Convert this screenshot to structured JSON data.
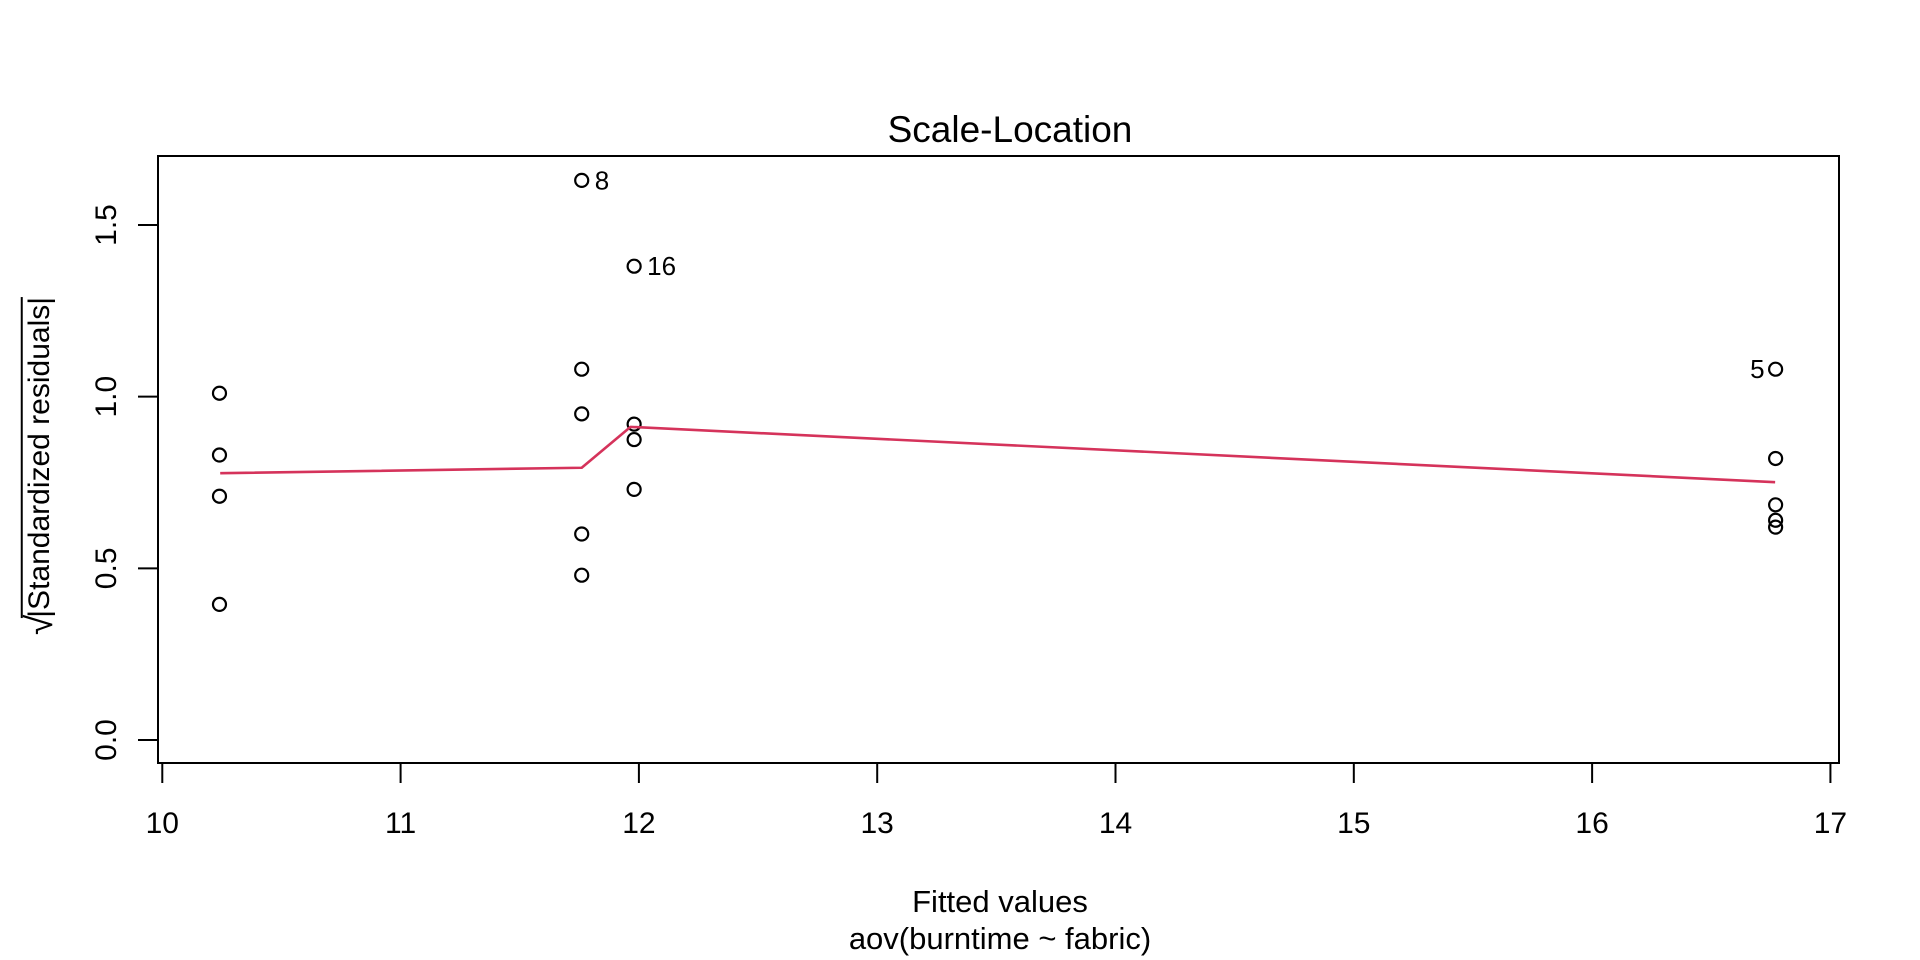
{
  "chart_data": {
    "type": "scatter",
    "title": "Scale-Location",
    "xlabel": "Fitted values",
    "xlabel_sub": "aov(burntime ~ fabric)",
    "ylabel_sqrt": "√",
    "ylabel_radicand": "|Standardized residuals|",
    "x_ticks": [
      10,
      11,
      12,
      13,
      14,
      15,
      16,
      17
    ],
    "y_ticks": [
      0.0,
      0.5,
      1.0,
      1.5
    ],
    "y_tick_labels": [
      "0.0",
      "0.5",
      "1.0",
      "1.5"
    ],
    "xlim": [
      9.982,
      17.036
    ],
    "ylim": [
      -0.067,
      1.701
    ],
    "grid": false,
    "legend": null,
    "points": [
      {
        "x": 10.24,
        "y": 1.01
      },
      {
        "x": 10.24,
        "y": 0.83
      },
      {
        "x": 10.24,
        "y": 0.71
      },
      {
        "x": 10.24,
        "y": 0.395
      },
      {
        "x": 11.76,
        "y": 1.63,
        "label": "8",
        "label_side": "right"
      },
      {
        "x": 11.76,
        "y": 1.08
      },
      {
        "x": 11.76,
        "y": 0.95
      },
      {
        "x": 11.76,
        "y": 0.6
      },
      {
        "x": 11.76,
        "y": 0.48
      },
      {
        "x": 11.98,
        "y": 1.38,
        "label": "16",
        "label_side": "right"
      },
      {
        "x": 11.98,
        "y": 0.92
      },
      {
        "x": 11.98,
        "y": 0.875
      },
      {
        "x": 11.98,
        "y": 0.73
      },
      {
        "x": 16.77,
        "y": 1.08,
        "label": "5",
        "label_side": "left"
      },
      {
        "x": 16.77,
        "y": 0.82
      },
      {
        "x": 16.77,
        "y": 0.685
      },
      {
        "x": 16.77,
        "y": 0.64
      },
      {
        "x": 16.77,
        "y": 0.62
      }
    ],
    "smooth_line": [
      {
        "x": 10.243,
        "y": 0.777
      },
      {
        "x": 11.76,
        "y": 0.793
      },
      {
        "x": 11.965,
        "y": 0.912
      },
      {
        "x": 16.768,
        "y": 0.751
      }
    ],
    "colors": {
      "points": "#000000",
      "smooth_line": "#D5335B",
      "axis": "#000000"
    }
  }
}
